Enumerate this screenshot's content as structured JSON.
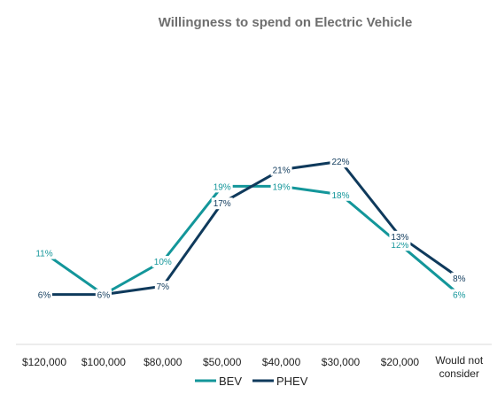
{
  "chart_data": {
    "type": "line",
    "title": "Willingness to spend on Electric Vehicle",
    "xlabel": "",
    "ylabel": "",
    "ylim": [
      0,
      40
    ],
    "grid": false,
    "legend": "bottom",
    "categories": [
      "$120,000",
      "$100,000",
      "$80,000",
      "$50,000",
      "$40,000",
      "$30,000",
      "$20,000",
      "Would not consider"
    ],
    "series": [
      {
        "name": "BEV",
        "color": "#13969a",
        "values": [
          11,
          6,
          10,
          19,
          19,
          18,
          12,
          6
        ],
        "labels": [
          "11%",
          "6%",
          "10%",
          "19%",
          "19%",
          "18%",
          "12%",
          "6%"
        ]
      },
      {
        "name": "PHEV",
        "color": "#0f3a5c",
        "values": [
          6,
          6,
          7,
          17,
          21,
          22,
          13,
          8
        ],
        "labels": [
          "6%",
          "6%",
          "7%",
          "17%",
          "21%",
          "22%",
          "13%",
          "8%"
        ]
      }
    ]
  }
}
